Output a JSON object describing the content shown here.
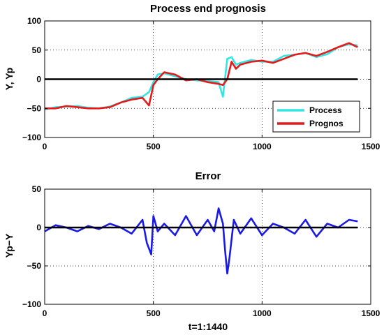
{
  "chart_data": [
    {
      "type": "line",
      "title": "Process end prognosis",
      "xlabel": "",
      "ylabel": "Y,  Yp",
      "xlim": [
        0,
        1500
      ],
      "ylim": [
        -100,
        100
      ],
      "xticks": [
        0,
        500,
        1000,
        1500
      ],
      "yticks": [
        -100,
        -50,
        0,
        50,
        100
      ],
      "grid": true,
      "legend": "bottom-right",
      "zero_line": 0,
      "series": [
        {
          "name": "Process",
          "color": "#33e6e6",
          "x": [
            0,
            50,
            100,
            150,
            200,
            250,
            300,
            350,
            400,
            450,
            480,
            500,
            520,
            550,
            600,
            650,
            700,
            750,
            800,
            820,
            840,
            860,
            880,
            900,
            950,
            1000,
            1050,
            1100,
            1150,
            1200,
            1250,
            1300,
            1350,
            1400,
            1440
          ],
          "y": [
            -52,
            -48,
            -47,
            -46,
            -49,
            -50,
            -47,
            -40,
            -32,
            -30,
            -22,
            -5,
            8,
            10,
            5,
            0,
            -2,
            -3,
            -5,
            -30,
            35,
            38,
            25,
            28,
            33,
            30,
            30,
            40,
            42,
            45,
            38,
            43,
            55,
            60,
            58
          ]
        },
        {
          "name": "Prognos",
          "color": "#e61a1a",
          "x": [
            0,
            50,
            100,
            150,
            200,
            250,
            300,
            350,
            400,
            450,
            480,
            500,
            520,
            550,
            600,
            650,
            700,
            750,
            800,
            820,
            840,
            860,
            880,
            900,
            950,
            1000,
            1050,
            1100,
            1150,
            1200,
            1250,
            1300,
            1350,
            1400,
            1440
          ],
          "y": [
            -50,
            -50,
            -46,
            -48,
            -50,
            -50,
            -48,
            -40,
            -35,
            -32,
            -45,
            -10,
            0,
            12,
            8,
            -2,
            0,
            -5,
            -8,
            -10,
            0,
            30,
            18,
            25,
            30,
            32,
            28,
            35,
            42,
            45,
            40,
            47,
            55,
            62,
            55
          ]
        }
      ]
    },
    {
      "type": "line",
      "title": "Error",
      "xlabel": "t=1:1440",
      "ylabel": "Yp−Y",
      "xlim": [
        0,
        1500
      ],
      "ylim": [
        -100,
        50
      ],
      "xticks": [
        0,
        500,
        1000,
        1500
      ],
      "yticks": [
        -100,
        -50,
        0,
        50
      ],
      "grid": true,
      "zero_line": 0,
      "series": [
        {
          "name": "",
          "color": "#1a1ae6",
          "x": [
            0,
            50,
            100,
            150,
            200,
            250,
            300,
            350,
            400,
            450,
            470,
            490,
            500,
            520,
            550,
            600,
            650,
            700,
            750,
            780,
            800,
            820,
            830,
            840,
            850,
            870,
            900,
            950,
            1000,
            1050,
            1100,
            1150,
            1200,
            1250,
            1300,
            1350,
            1400,
            1440
          ],
          "y": [
            -5,
            3,
            0,
            -5,
            2,
            -2,
            5,
            0,
            -8,
            10,
            -20,
            -35,
            15,
            -5,
            5,
            -10,
            15,
            -10,
            10,
            -5,
            25,
            5,
            -30,
            -60,
            -40,
            10,
            -8,
            12,
            -10,
            5,
            0,
            -8,
            10,
            -12,
            5,
            0,
            10,
            8
          ]
        }
      ]
    }
  ]
}
